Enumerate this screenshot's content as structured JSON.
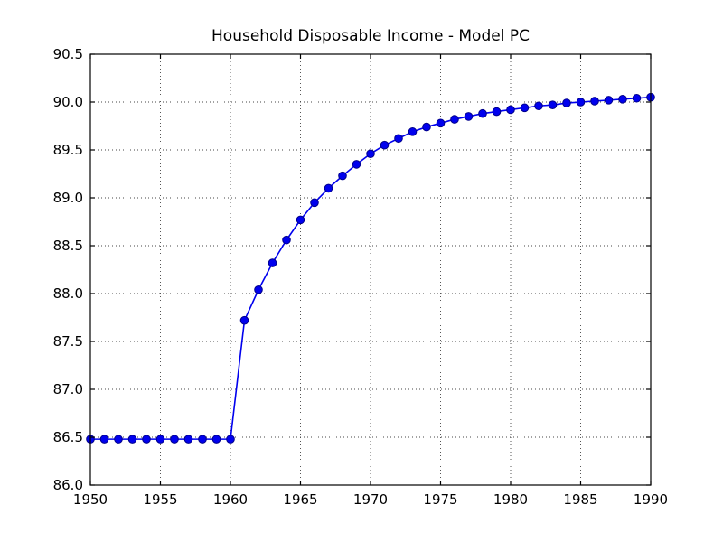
{
  "chart_data": {
    "type": "line",
    "title": "Household Disposable Income - Model PC",
    "xlabel": "",
    "ylabel": "",
    "xlim": [
      1950,
      1990
    ],
    "ylim": [
      86.0,
      90.5
    ],
    "xticks": [
      1950,
      1955,
      1960,
      1965,
      1970,
      1975,
      1980,
      1985,
      1990
    ],
    "xtick_labels": [
      "1950",
      "1955",
      "1960",
      "1965",
      "1970",
      "1975",
      "1980",
      "1985",
      "1990"
    ],
    "yticks": [
      86.0,
      86.5,
      87.0,
      87.5,
      88.0,
      88.5,
      89.0,
      89.5,
      90.0,
      90.5
    ],
    "ytick_labels": [
      "86.0",
      "86.5",
      "87.0",
      "87.5",
      "88.0",
      "88.5",
      "89.0",
      "89.5",
      "90.0",
      "90.5"
    ],
    "grid": true,
    "grid_style": "dotted",
    "legend": "none",
    "colors": {
      "line": "#0000ee",
      "marker_fill": "#0000ee",
      "marker_edge": "#00008b",
      "axis": "#000000",
      "grid": "#444444",
      "background": "#ffffff"
    },
    "x": [
      1950,
      1951,
      1952,
      1953,
      1954,
      1955,
      1956,
      1957,
      1958,
      1959,
      1960,
      1961,
      1962,
      1963,
      1964,
      1965,
      1966,
      1967,
      1968,
      1969,
      1970,
      1971,
      1972,
      1973,
      1974,
      1975,
      1976,
      1977,
      1978,
      1979,
      1980,
      1981,
      1982,
      1983,
      1984,
      1985,
      1986,
      1987,
      1988,
      1989,
      1990
    ],
    "series": [
      {
        "name": "household-disposable-income",
        "marker": "circle",
        "values": [
          86.48,
          86.48,
          86.48,
          86.48,
          86.48,
          86.48,
          86.48,
          86.48,
          86.48,
          86.48,
          86.48,
          87.72,
          88.04,
          88.32,
          88.56,
          88.77,
          88.95,
          89.1,
          89.23,
          89.35,
          89.46,
          89.55,
          89.62,
          89.69,
          89.74,
          89.78,
          89.82,
          89.85,
          89.88,
          89.9,
          89.92,
          89.94,
          89.96,
          89.97,
          89.99,
          90.0,
          90.01,
          90.02,
          90.03,
          90.04,
          90.05
        ]
      }
    ]
  }
}
